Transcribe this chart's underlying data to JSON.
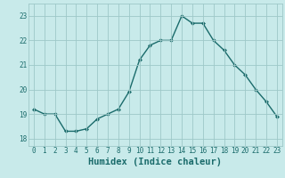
{
  "x": [
    0,
    1,
    2,
    3,
    4,
    5,
    6,
    7,
    8,
    9,
    10,
    11,
    12,
    13,
    14,
    15,
    16,
    17,
    18,
    19,
    20,
    21,
    22,
    23
  ],
  "y": [
    19.2,
    19.0,
    19.0,
    18.3,
    18.3,
    18.4,
    18.8,
    19.0,
    19.2,
    19.9,
    21.2,
    21.8,
    22.0,
    22.0,
    23.0,
    22.7,
    22.7,
    22.0,
    21.6,
    21.0,
    20.6,
    20.0,
    19.5,
    18.9
  ],
  "line_color": "#1a6b6b",
  "marker": "D",
  "marker_size": 2,
  "linewidth": 1.0,
  "bg_color": "#c8eaea",
  "grid_color": "#9ec8c8",
  "xlabel": "Humidex (Indice chaleur)",
  "xlabel_fontsize": 7.5,
  "yticks": [
    18,
    19,
    20,
    21,
    22,
    23
  ],
  "xtick_labels": [
    "0",
    "1",
    "2",
    "3",
    "4",
    "5",
    "6",
    "7",
    "8",
    "9",
    "10",
    "11",
    "12",
    "13",
    "14",
    "15",
    "16",
    "17",
    "18",
    "19",
    "20",
    "21",
    "22",
    "23"
  ],
  "ylim": [
    17.7,
    23.5
  ],
  "xlim": [
    -0.5,
    23.5
  ],
  "tick_fontsize": 5.5
}
